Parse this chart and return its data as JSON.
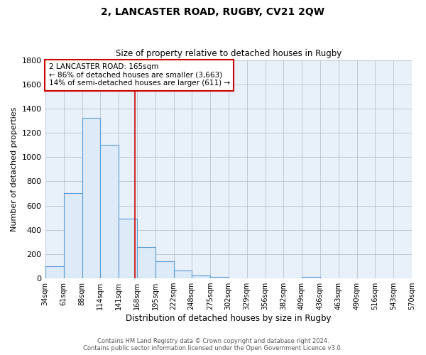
{
  "title": "2, LANCASTER ROAD, RUGBY, CV21 2QW",
  "subtitle": "Size of property relative to detached houses in Rugby",
  "xlabel": "Distribution of detached houses by size in Rugby",
  "ylabel": "Number of detached properties",
  "bin_edges": [
    34,
    61,
    88,
    114,
    141,
    168,
    195,
    222,
    248,
    275,
    302,
    329,
    356,
    382,
    409,
    436,
    463,
    490,
    516,
    543,
    570
  ],
  "bar_heights": [
    100,
    700,
    1325,
    1100,
    490,
    260,
    140,
    65,
    25,
    10,
    0,
    0,
    0,
    0,
    10,
    0,
    0,
    0,
    0,
    0
  ],
  "bar_facecolor": "#ddeaf7",
  "bar_edgecolor": "#5b9bd5",
  "plot_bg_color": "#e8f0fa",
  "fig_bg_color": "#ffffff",
  "grid_color": "#b0b8c8",
  "vline_x": 165,
  "vline_color": "#cc0000",
  "annotation_text": "2 LANCASTER ROAD: 165sqm\n← 86% of detached houses are smaller (3,663)\n14% of semi-detached houses are larger (611) →",
  "annotation_box_edgecolor": "#cc0000",
  "ylim": [
    0,
    1800
  ],
  "yticks": [
    0,
    200,
    400,
    600,
    800,
    1000,
    1200,
    1400,
    1600,
    1800
  ],
  "footer_line1": "Contains HM Land Registry data © Crown copyright and database right 2024.",
  "footer_line2": "Contains public sector information licensed under the Open Government Licence v3.0."
}
